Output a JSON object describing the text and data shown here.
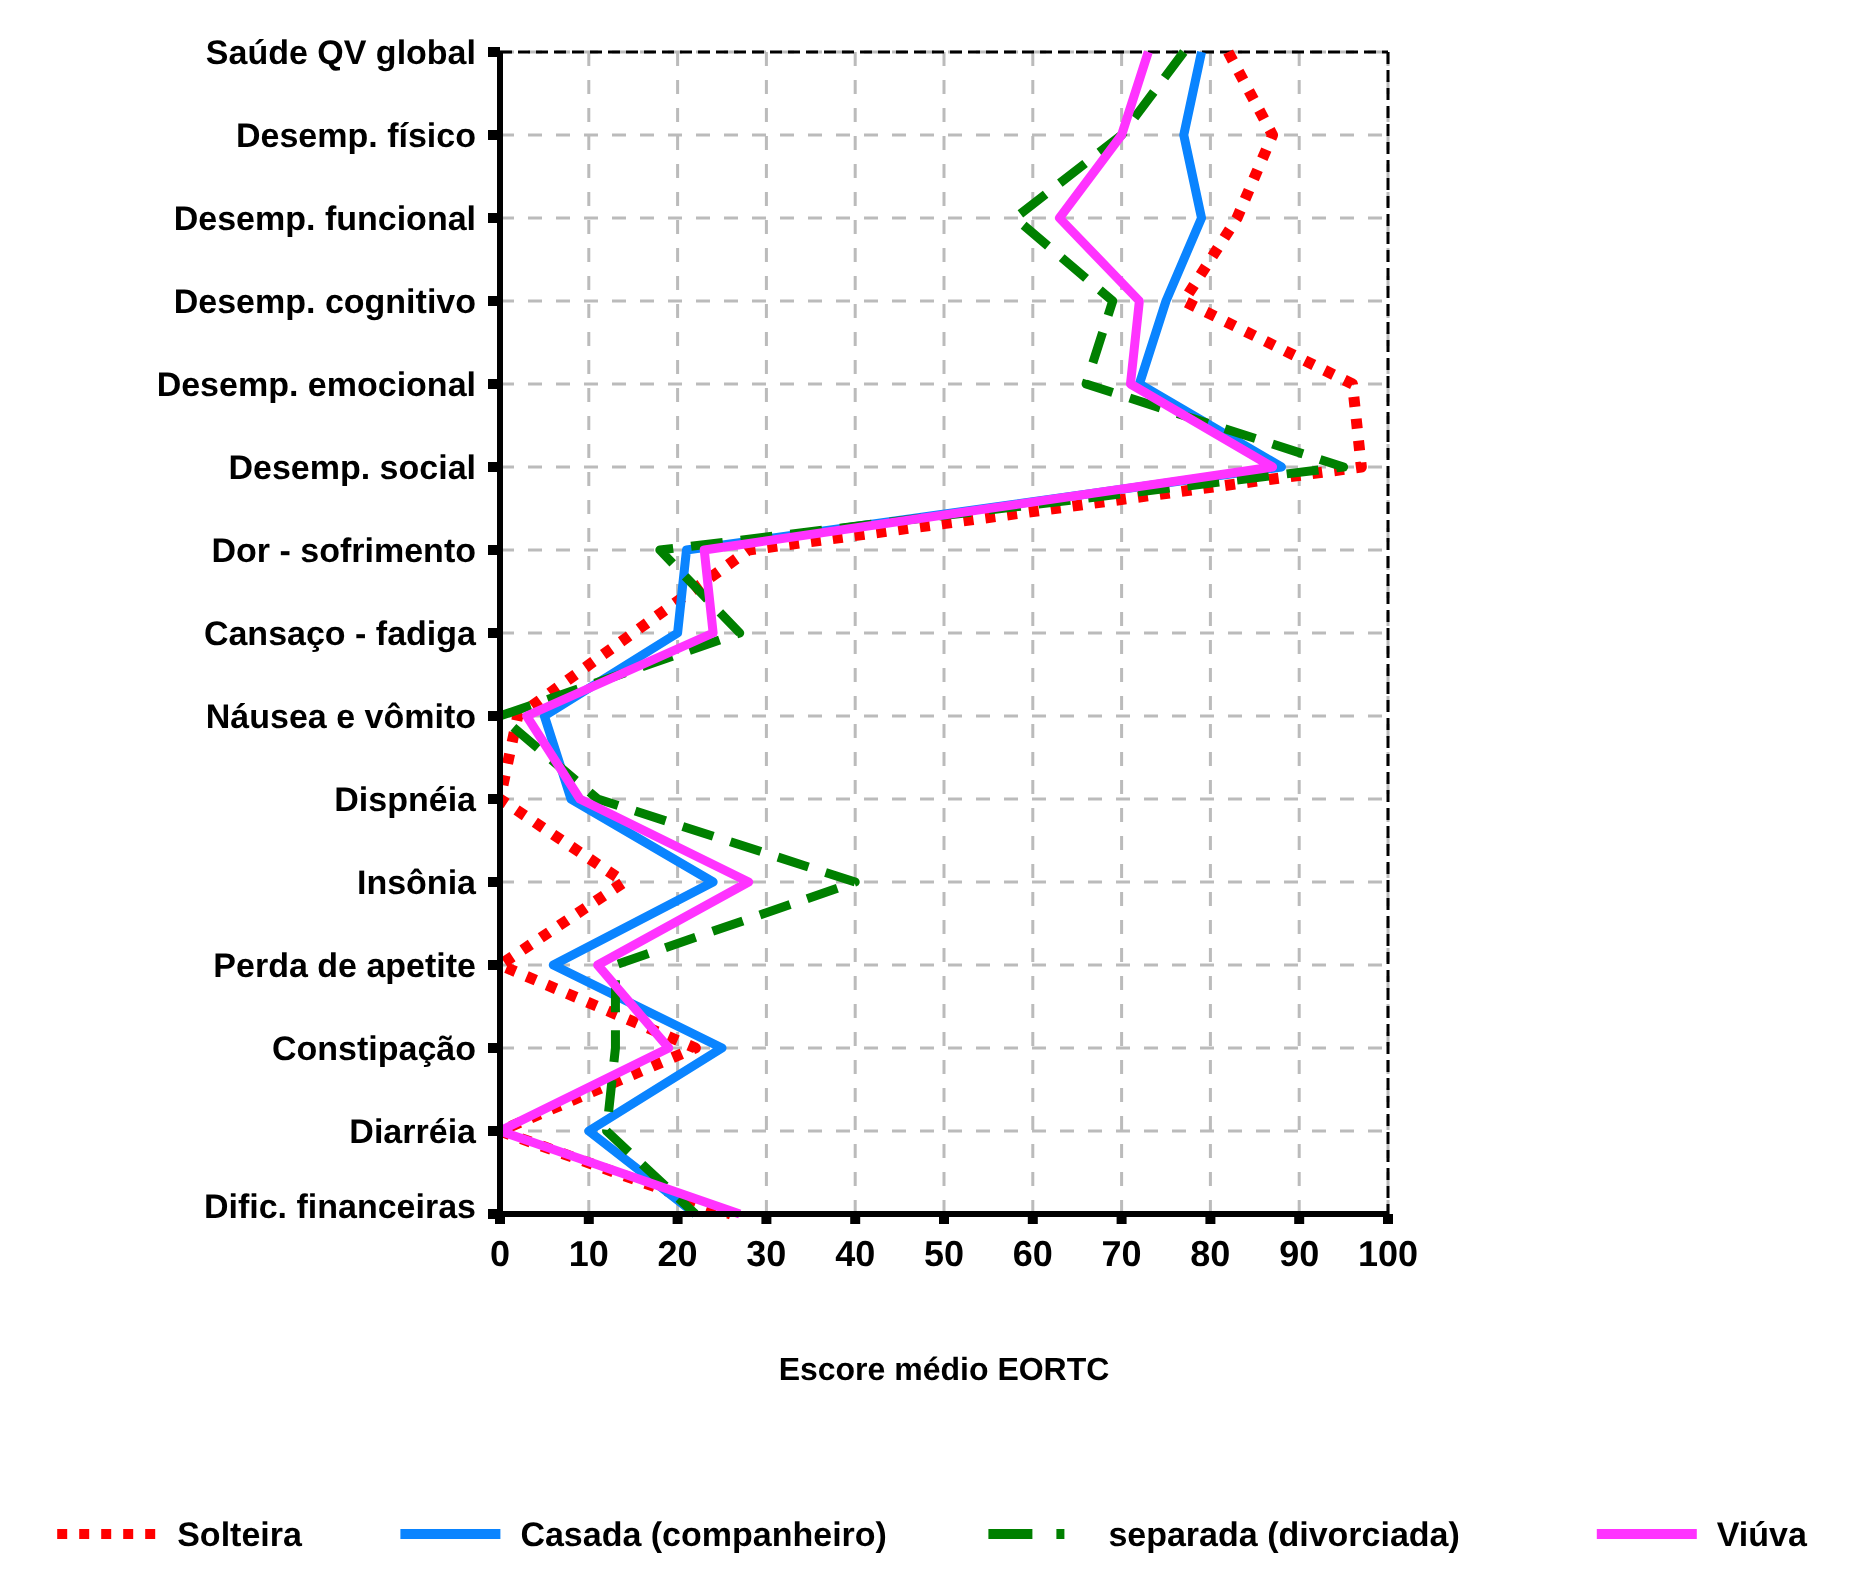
{
  "chart_data": {
    "type": "line",
    "orientation": "horizontal",
    "xlabel": "Escore médio EORTC",
    "categories": [
      "Saúde QV global",
      "Desemp. físico",
      "Desemp. funcional",
      "Desemp. cognitivo",
      "Desemp. emocional",
      "Desemp. social",
      "Dor - sofrimento",
      "Cansaço - fadiga",
      "Náusea e vômito",
      "Dispnéia",
      "Insônia",
      "Perda de apetite",
      "Constipação",
      "Diarréia",
      "Dific. financeiras"
    ],
    "xlim": [
      0,
      100
    ],
    "xticks": [
      0,
      10,
      20,
      30,
      40,
      50,
      60,
      70,
      80,
      90,
      100
    ],
    "grid": true,
    "legend": "bottom",
    "marker": "none",
    "series": [
      {
        "name": "Solteira",
        "color": "#ff0000",
        "line_style": "dotted",
        "values": [
          82,
          87,
          83,
          77,
          96,
          97,
          28,
          15,
          2,
          0,
          14,
          0,
          22,
          0,
          26
        ]
      },
      {
        "name": "Casada (companheiro)",
        "color": "#0a84ff",
        "line_style": "solid",
        "values": [
          79,
          77,
          79,
          75,
          72,
          88,
          21,
          20,
          5,
          8,
          24,
          6,
          25,
          10,
          22
        ]
      },
      {
        "name": "separada (divorciada)",
        "color": "#008000",
        "line_style": "dashed",
        "values": [
          77,
          70,
          58,
          69,
          66,
          95,
          18,
          27,
          0,
          11,
          40,
          13,
          13,
          12,
          22
        ]
      },
      {
        "name": "Viúva",
        "color": "#ff33ff",
        "line_style": "solid",
        "values": [
          73,
          70,
          63,
          72,
          71,
          87,
          23,
          24,
          3,
          9,
          28,
          11,
          19,
          0,
          27
        ]
      }
    ]
  }
}
